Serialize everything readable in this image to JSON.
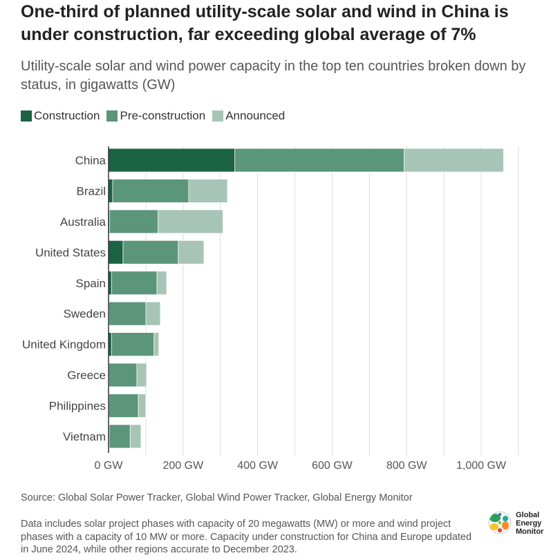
{
  "title": "One-third of planned utility-scale solar and wind in China is under construction, far exceeding global average of 7%",
  "subtitle": "Utility-scale solar and wind power capacity in the top ten countries broken down by status, in gigawatts (GW)",
  "chart_data": {
    "type": "bar",
    "orientation": "horizontal",
    "stacked": true,
    "title": "One-third of planned utility-scale solar and wind in China is under construction, far exceeding global average of 7%",
    "xlabel": "",
    "ylabel": "",
    "unit": "GW",
    "categories": [
      "China",
      "Brazil",
      "Australia",
      "United States",
      "Spain",
      "Sweden",
      "United Kingdom",
      "Greece",
      "Philippines",
      "Vietnam"
    ],
    "series": [
      {
        "name": "Construction",
        "color": "#1b6343",
        "values": [
          339,
          11,
          3,
          39,
          8,
          1,
          8,
          1,
          1,
          2
        ]
      },
      {
        "name": "Pre-construction",
        "color": "#5b957a",
        "values": [
          454,
          204,
          130,
          148,
          122,
          99,
          114,
          75,
          79,
          56
        ]
      },
      {
        "name": "Announced",
        "color": "#a6c5b7",
        "values": [
          267,
          104,
          174,
          69,
          26,
          39,
          13,
          26,
          20,
          29
        ]
      }
    ],
    "xlim": [
      0,
      1100
    ],
    "grid_step": 100,
    "x_ticks": [
      0,
      200,
      400,
      600,
      800,
      1000
    ],
    "x_tick_labels": [
      "0 GW",
      "200 GW",
      "400 GW",
      "600 GW",
      "800 GW",
      "1,000 GW"
    ],
    "grid": true,
    "legend_position": "top-left"
  },
  "source": "Source: Global Solar Power Tracker, Global Wind Power Tracker, Global Energy Monitor",
  "note": "Data includes solar project phases with capacity of 20 megawatts (MW) or more and wind project phases with a capacity of 10 MW or more. Capacity under construction for China and Europe updated in June 2024, while other regions accurate to December 2023.",
  "logo": {
    "lines": [
      "Global",
      "Energy",
      "Monitor"
    ],
    "icon": "globe-icon"
  }
}
